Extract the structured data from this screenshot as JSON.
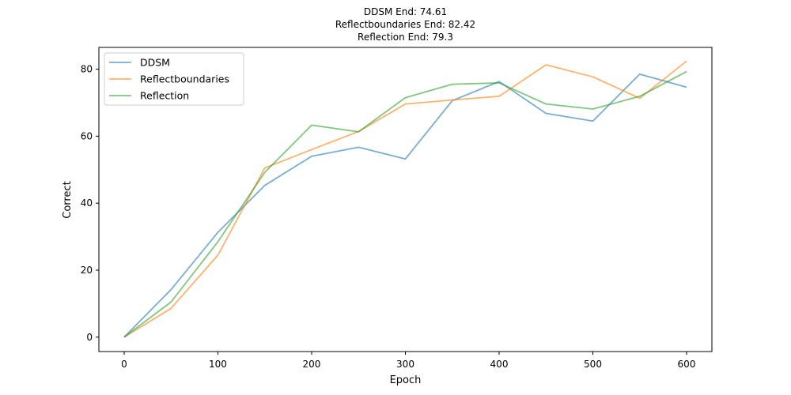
{
  "chart_data": {
    "type": "line",
    "title_lines": [
      "DDSM End: 74.61",
      "Reflectboundaries End: 82.42",
      "Reflection End: 79.3"
    ],
    "xlabel": "Epoch",
    "ylabel": "Correct",
    "x": [
      0,
      50,
      100,
      150,
      200,
      250,
      300,
      350,
      400,
      450,
      500,
      550,
      600
    ],
    "xlim": [
      -27,
      627
    ],
    "ylim": [
      -4.3,
      86.5
    ],
    "xticks": [
      0,
      100,
      200,
      300,
      400,
      500,
      600
    ],
    "yticks": [
      0,
      20,
      40,
      60,
      80
    ],
    "grid": false,
    "legend_position": "top-left",
    "series": [
      {
        "name": "DDSM",
        "color": "#1f77b4",
        "values": [
          0,
          14.2,
          31.3,
          45.3,
          54.0,
          56.7,
          53.2,
          70.6,
          76.3,
          66.8,
          64.5,
          78.5,
          74.61
        ]
      },
      {
        "name": "Reflectboundaries",
        "color": "#ff7f0e",
        "values": [
          0,
          8.6,
          24.5,
          50.5,
          56.0,
          61.4,
          69.6,
          70.8,
          71.9,
          81.3,
          77.7,
          71.3,
          82.42
        ]
      },
      {
        "name": "Reflection",
        "color": "#2ca02c",
        "values": [
          0,
          10.5,
          28.5,
          49.2,
          63.3,
          61.3,
          71.5,
          75.5,
          75.9,
          69.6,
          68.1,
          71.9,
          79.3
        ]
      }
    ]
  }
}
